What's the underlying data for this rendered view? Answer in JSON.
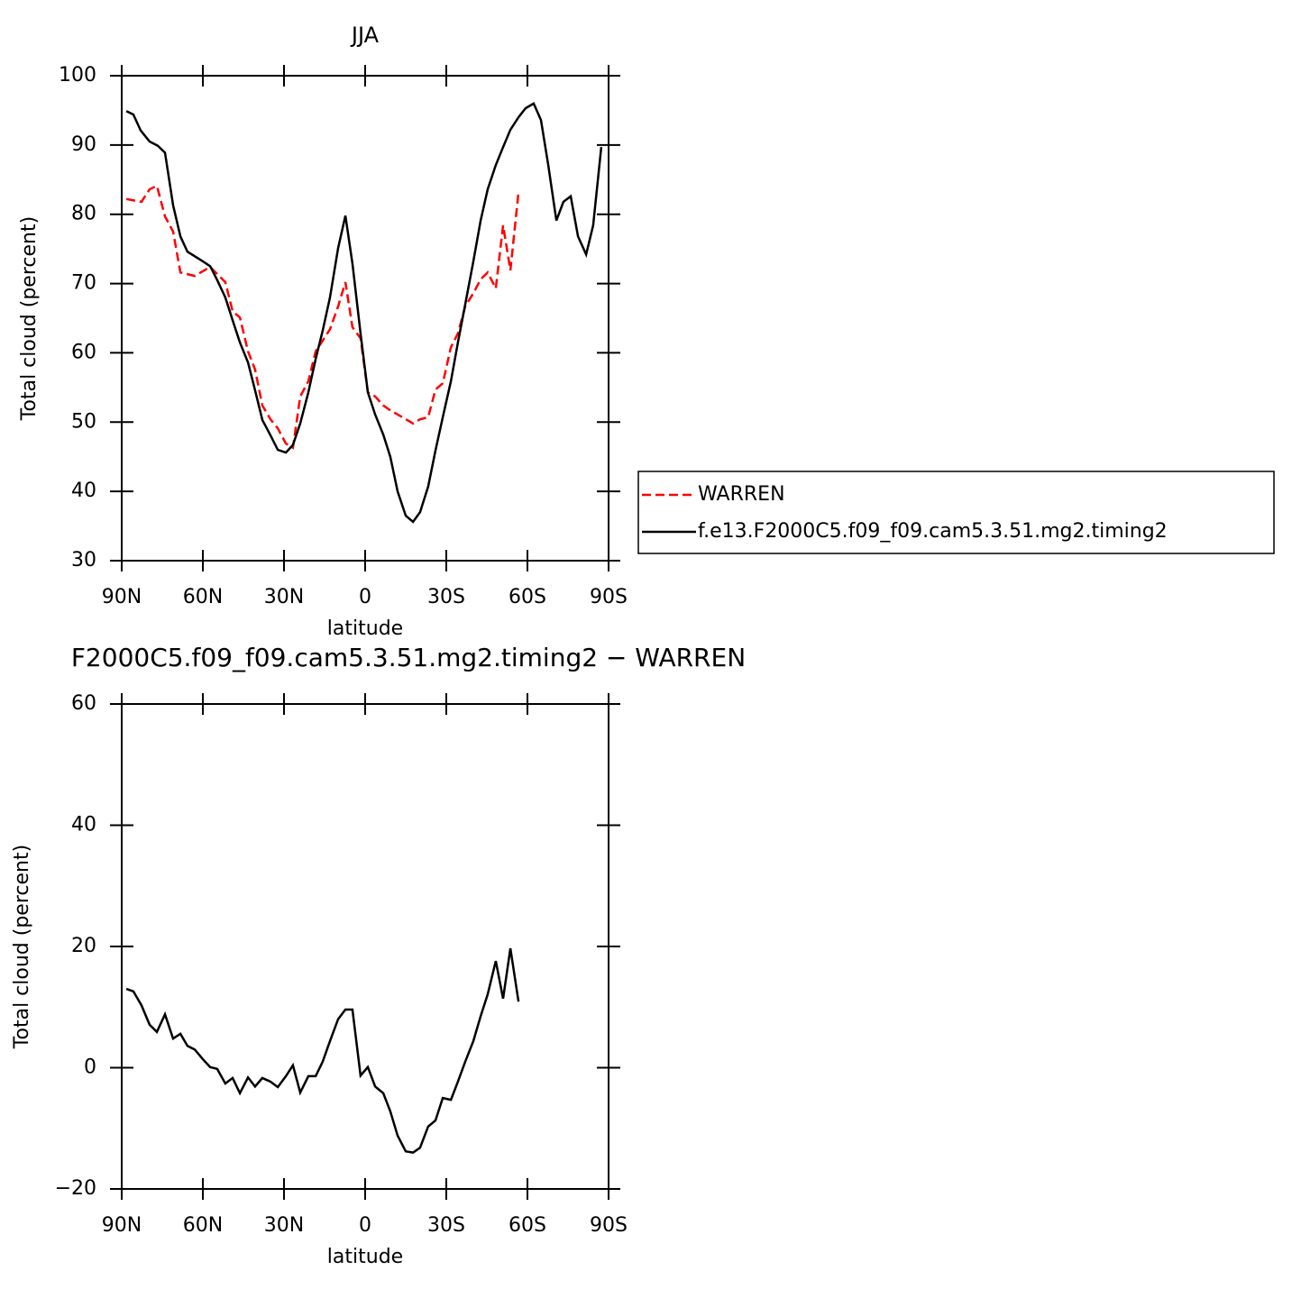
{
  "chart_data": [
    {
      "type": "line",
      "title": "JJA",
      "xlabel": "latitude",
      "ylabel": "Total cloud (percent)",
      "xlim": [
        90,
        -90
      ],
      "xticks": [
        {
          "value": 90,
          "label": "90N"
        },
        {
          "value": 60,
          "label": "60N"
        },
        {
          "value": 30,
          "label": "30N"
        },
        0,
        {
          "value": -30,
          "label": "30S"
        },
        {
          "value": -60,
          "label": "60S"
        },
        {
          "value": -90,
          "label": "90S"
        }
      ],
      "ylim": [
        30,
        100
      ],
      "yticks": [
        30,
        40,
        50,
        60,
        70,
        80,
        90,
        100
      ],
      "legend": "right",
      "series": [
        {
          "name": "WARREN",
          "color": "#ff0000",
          "dashed": true,
          "x": [
            88.3,
            82.7,
            79.7,
            77,
            74,
            71,
            68.3,
            63,
            57.3,
            51.7,
            49,
            46.3,
            43.3,
            40.7,
            38,
            35,
            32.3,
            29.3,
            26.7,
            24,
            21,
            18.3,
            13,
            10,
            7.3,
            4.7,
            1.7,
            -1,
            -3.7,
            -6.7,
            -9.3,
            -12,
            -17.7,
            -20.3,
            -23.3,
            -26,
            -28.7,
            -31.7,
            -34.3,
            -37,
            -40,
            -42.7,
            -45.3,
            -48.3,
            -51,
            -53.7,
            -56.7
          ],
          "values": [
            82.2,
            81.8,
            83.6,
            84.1,
            79.7,
            77.5,
            71.6,
            71.1,
            72.4,
            70.2,
            66,
            65.1,
            60.2,
            57.6,
            52.4,
            50.4,
            49.1,
            46.9,
            46.3,
            53.7,
            55.9,
            60.2,
            63.4,
            66.7,
            70.2,
            63.7,
            62.1,
            54.3,
            53.7,
            52.4,
            51.7,
            51.1,
            49.8,
            50.4,
            50.7,
            54.7,
            55.6,
            60.8,
            62.8,
            66.7,
            68.6,
            70.6,
            71.6,
            69.3,
            78.4,
            71.9,
            83.2
          ]
        },
        {
          "name": "f.e13.F2000C5.f09_f09.cam5.3.51.mg2.timing2",
          "color": "#000000",
          "dashed": false,
          "x": [
            88.3,
            85.7,
            83,
            79.7,
            76.7,
            74,
            71,
            68.3,
            65.7,
            60,
            57.3,
            54.7,
            51.7,
            49,
            46.3,
            43.3,
            40.7,
            38,
            35,
            32.3,
            29.3,
            26.7,
            24,
            21,
            18.3,
            15.7,
            13,
            10,
            7.3,
            4.7,
            1.7,
            -1,
            -3.7,
            -6.7,
            -9.3,
            -12,
            -15,
            -17.7,
            -20.3,
            -23.3,
            -26,
            -28.7,
            -31.7,
            -34.3,
            -37,
            -40,
            -42.7,
            -45.3,
            -48.3,
            -51,
            -53.7,
            -56.7,
            -59.3,
            -62.3,
            -65,
            -67.7,
            -70.7,
            -73.3,
            -76,
            -78.7,
            -81.7,
            -84.3,
            -87.3
          ],
          "values": [
            94.9,
            94.4,
            92.1,
            90.5,
            89.9,
            88.9,
            81.3,
            76.8,
            74.6,
            73.2,
            72.5,
            70.5,
            68,
            64.7,
            61.5,
            58.6,
            54.6,
            50.3,
            48.1,
            46,
            45.6,
            46.7,
            49.8,
            54.3,
            59.1,
            63.2,
            68,
            75.1,
            79.8,
            72.9,
            62.8,
            54.3,
            51.1,
            48.2,
            45,
            40,
            36.5,
            35.6,
            37,
            40.7,
            45.9,
            50.7,
            55.9,
            61.5,
            67,
            73.2,
            79.1,
            83.6,
            87.1,
            89.7,
            92.2,
            94,
            95.3,
            96,
            93.6,
            87.1,
            79.1,
            81.8,
            82.6,
            76.8,
            74.2,
            78.4,
            89.7
          ]
        }
      ]
    },
    {
      "type": "line",
      "title": "F2000C5.f09_f09.cam5.3.51.mg2.timing2 − WARREN",
      "xlabel": "latitude",
      "ylabel": "Total cloud (percent)",
      "xlim": [
        90,
        -90
      ],
      "xticks": [
        {
          "value": 90,
          "label": "90N"
        },
        {
          "value": 60,
          "label": "60N"
        },
        {
          "value": 30,
          "label": "30N"
        },
        0,
        {
          "value": -30,
          "label": "30S"
        },
        {
          "value": -60,
          "label": "60S"
        },
        {
          "value": -90,
          "label": "90S"
        }
      ],
      "ylim": [
        -20,
        60
      ],
      "yticks": [
        {
          "value": -20,
          "label": "−20"
        },
        0,
        20,
        40,
        60
      ],
      "series": [
        {
          "color": "#000000",
          "dashed": false,
          "x": [
            88.3,
            85.7,
            82.7,
            79.7,
            77,
            74,
            71,
            68.3,
            65.7,
            63,
            60,
            57.3,
            54.7,
            51.7,
            49,
            46.3,
            43.3,
            40.7,
            38,
            35,
            32.3,
            29.3,
            26.7,
            24,
            21,
            18.3,
            15.7,
            13,
            10,
            7.3,
            4.7,
            1.7,
            -1,
            -3.7,
            -6.7,
            -9.3,
            -12,
            -15,
            -17.7,
            -20.3,
            -23.3,
            -26,
            -28.7,
            -31.7,
            -34.3,
            -37,
            -40,
            -42.7,
            -45.3,
            -48.3,
            -51,
            -53.7,
            -56.7
          ],
          "values": [
            13,
            12.6,
            10.3,
            7.1,
            5.9,
            8.8,
            4.8,
            5.6,
            3.6,
            3,
            1.4,
            0.1,
            -0.2,
            -2.6,
            -1.7,
            -4.2,
            -1.6,
            -3.1,
            -1.7,
            -2.3,
            -3.2,
            -1.4,
            0.4,
            -4.1,
            -1.4,
            -1.4,
            1,
            4.4,
            8,
            9.6,
            9.6,
            -1.3,
            0.1,
            -3.1,
            -4.2,
            -7.2,
            -11.2,
            -13.8,
            -14,
            -13.2,
            -9.7,
            -8.7,
            -5,
            -5.3,
            -2.3,
            1,
            4.4,
            8.5,
            12.1,
            17.6,
            11.4,
            19.7,
            10.9
          ]
        }
      ]
    }
  ]
}
